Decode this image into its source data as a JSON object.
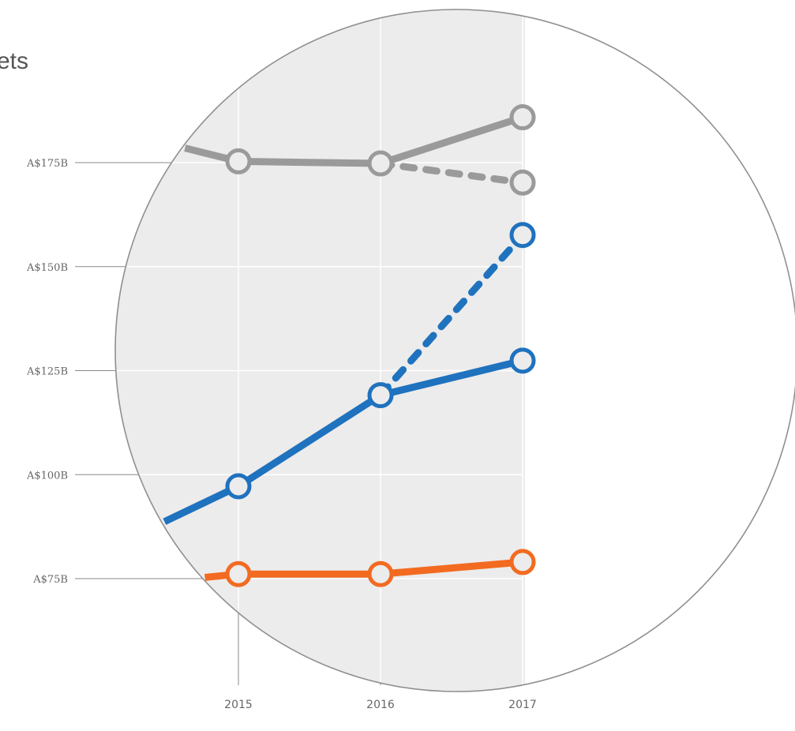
{
  "chart_data": {
    "type": "line",
    "title": "ets",
    "xlabel": "",
    "ylabel": "",
    "x": [
      2015,
      2016,
      2017
    ],
    "x_tick_labels": [
      "2015",
      "2016",
      "2017"
    ],
    "y_ticks": [
      75,
      100,
      125,
      150,
      175
    ],
    "y_tick_labels": [
      "A$75B",
      "A$100B",
      "A$125B",
      "A$150B",
      "A$175B"
    ],
    "ylim": [
      55,
      195
    ],
    "grid": true,
    "legend": "none",
    "series": [
      {
        "color": "#9a9a9a",
        "style": "solid",
        "lead_in": 178.5,
        "points": [
          [
            2015,
            175.3
          ],
          [
            2016,
            174.8
          ],
          [
            2017,
            185.9
          ]
        ]
      },
      {
        "color": "#9a9a9a",
        "style": "dashed",
        "points": [
          [
            2016,
            174.8
          ],
          [
            2017,
            170.2
          ]
        ]
      },
      {
        "color": "#1f72be",
        "style": "solid",
        "lead_in": 88.7,
        "points": [
          [
            2015,
            97.2
          ],
          [
            2016,
            119.1
          ],
          [
            2017,
            127.4
          ]
        ]
      },
      {
        "color": "#1f72be",
        "style": "dashed",
        "points": [
          [
            2016,
            119.1
          ],
          [
            2017,
            157.6
          ]
        ]
      },
      {
        "color": "#f26b21",
        "style": "solid",
        "lead_in": 75.3,
        "points": [
          [
            2015,
            76.1
          ],
          [
            2016,
            76.1
          ],
          [
            2017,
            79.0
          ]
        ]
      }
    ]
  }
}
